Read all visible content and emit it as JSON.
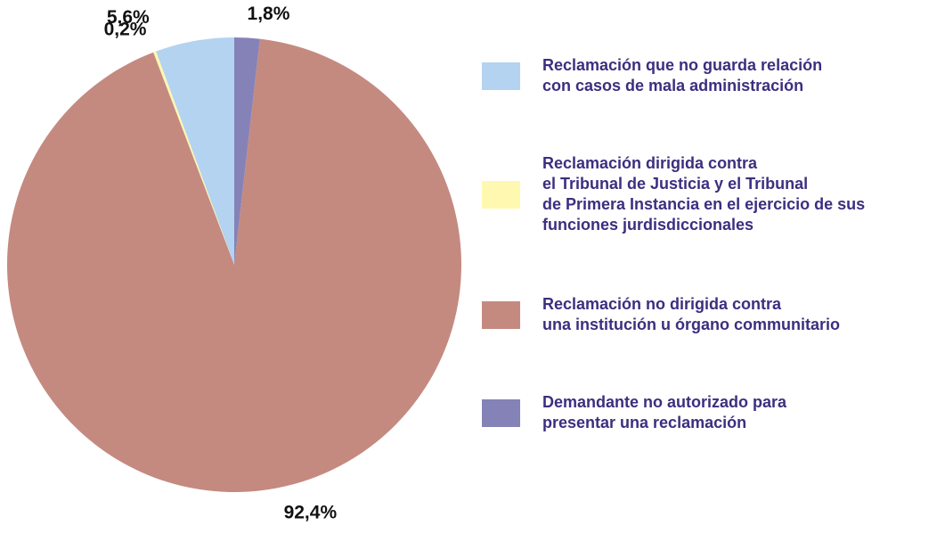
{
  "chart_data": {
    "type": "pie",
    "categories": [
      "Reclamación que no guarda relación\ncon casos de mala administración",
      "Reclamación dirigida contra\nel Tribunal de Justicia y el Tribunal\nde Primera Instancia en el ejercicio de sus\nfunciones jurdisdiccionales",
      "Reclamación no dirigida contra\nuna institución u órgano communitario",
      "Demandante no autorizado para\npresentar una reclamación"
    ],
    "values": [
      5.6,
      0.2,
      92.4,
      1.8
    ],
    "value_labels": [
      "5,6%",
      "0,2%",
      "92,4%",
      "1,8%"
    ],
    "colors": [
      "#b3d3f0",
      "#fff8b0",
      "#c48a80",
      "#8582b8"
    ]
  }
}
